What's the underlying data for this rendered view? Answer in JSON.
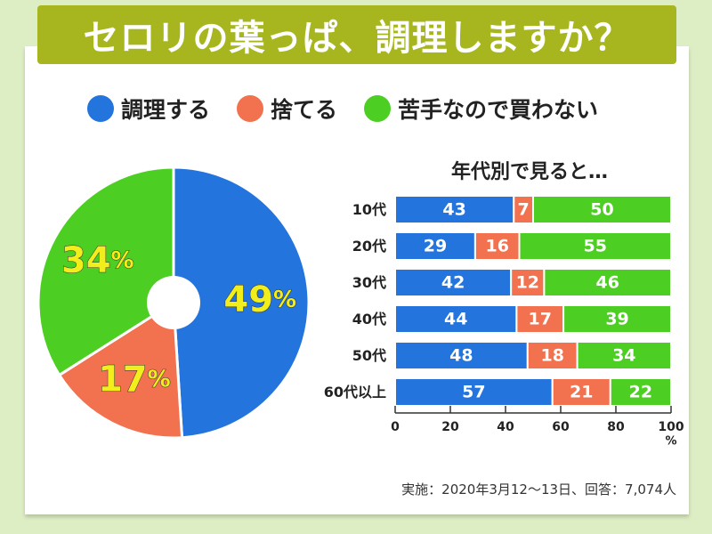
{
  "title": "セロリの葉っぱ、調理しますか？",
  "legend": [
    {
      "label": "調理する",
      "color": "#2474de"
    },
    {
      "label": "捨てる",
      "color": "#f2714f"
    },
    {
      "label": "苦手なので買わない",
      "color": "#4ccf22"
    }
  ],
  "bar_title": "年代別で見ると…",
  "source": "実施：2020年3月12〜13日、回答：7,074人",
  "chart_data": [
    {
      "type": "pie",
      "categories": [
        "調理する",
        "捨てる",
        "苦手なので買わない"
      ],
      "values": [
        49,
        17,
        34
      ],
      "unit": "%",
      "colors": [
        "#2474de",
        "#f2714f",
        "#4ccf22"
      ]
    },
    {
      "type": "bar",
      "orientation": "horizontal",
      "stacked": true,
      "title": "年代別で見ると…",
      "categories": [
        "10代",
        "20代",
        "30代",
        "40代",
        "50代",
        "60代以上"
      ],
      "series": [
        {
          "name": "調理する",
          "values": [
            43,
            29,
            42,
            44,
            48,
            57
          ],
          "color": "#2474de"
        },
        {
          "name": "捨てる",
          "values": [
            7,
            16,
            12,
            17,
            18,
            21
          ],
          "color": "#f2714f"
        },
        {
          "name": "苦手なので買わない",
          "values": [
            50,
            55,
            46,
            39,
            34,
            22
          ],
          "color": "#4ccf22"
        }
      ],
      "xlim": [
        0,
        100
      ],
      "xticks": [
        0,
        20,
        40,
        60,
        80,
        100
      ],
      "xlabel": "%"
    }
  ]
}
